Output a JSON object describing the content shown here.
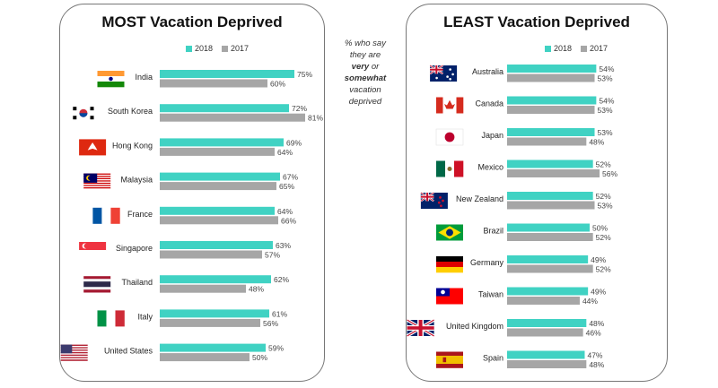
{
  "colors": {
    "series_2018": "#40d2c3",
    "series_2017": "#a6a6a6",
    "panel_border": "#777777"
  },
  "note": {
    "line1": "% who say",
    "line2": "they are",
    "line3_bold": "very",
    "line3_rest": " or",
    "line4_bold": "somewhat",
    "line5": "vacation",
    "line6": "deprived"
  },
  "chart_data": [
    {
      "type": "bar",
      "orientation": "horizontal",
      "title": "MOST Vacation Deprived",
      "legend": [
        "2018",
        "2017"
      ],
      "legend_position": "top",
      "grid": false,
      "xlim": [
        0,
        100
      ],
      "categories": [
        "India",
        "South Korea",
        "Hong Kong",
        "Malaysia",
        "France",
        "Singapore",
        "Thailand",
        "Italy",
        "United States"
      ],
      "flags": [
        "flag-india-icon",
        "flag-south-korea-icon",
        "flag-hong-kong-icon",
        "flag-malaysia-icon",
        "flag-france-icon",
        "flag-singapore-icon",
        "flag-thailand-icon",
        "flag-italy-icon",
        "flag-united-states-icon"
      ],
      "series": [
        {
          "name": "2018",
          "values": [
            75,
            72,
            69,
            67,
            64,
            63,
            62,
            61,
            59
          ],
          "labels": [
            "75%",
            "72%",
            "69%",
            "67%",
            "64%",
            "63%",
            "62%",
            "61%",
            "59%"
          ]
        },
        {
          "name": "2017",
          "values": [
            60,
            81,
            64,
            65,
            66,
            57,
            48,
            56,
            50
          ],
          "labels": [
            "60%",
            "81%",
            "64%",
            "65%",
            "66%",
            "57%",
            "48%",
            "56%",
            "50%"
          ]
        }
      ]
    },
    {
      "type": "bar",
      "orientation": "horizontal",
      "title": "LEAST Vacation Deprived",
      "legend": [
        "2018",
        "2017"
      ],
      "legend_position": "top",
      "grid": false,
      "xlim": [
        0,
        100
      ],
      "categories": [
        "Australia",
        "Canada",
        "Japan",
        "Mexico",
        "New Zealand",
        "Brazil",
        "Germany",
        "Taiwan",
        "United Kingdom",
        "Spain"
      ],
      "flags": [
        "flag-australia-icon",
        "flag-canada-icon",
        "flag-japan-icon",
        "flag-mexico-icon",
        "flag-new-zealand-icon",
        "flag-brazil-icon",
        "flag-germany-icon",
        "flag-taiwan-icon",
        "flag-united-kingdom-icon",
        "flag-spain-icon"
      ],
      "series": [
        {
          "name": "2018",
          "values": [
            54,
            54,
            53,
            52,
            52,
            50,
            49,
            49,
            48,
            47
          ],
          "labels": [
            "54%",
            "54%",
            "53%",
            "52%",
            "52%",
            "50%",
            "49%",
            "49%",
            "48%",
            "47%"
          ]
        },
        {
          "name": "2017",
          "values": [
            53,
            53,
            48,
            56,
            53,
            52,
            52,
            44,
            46,
            48
          ],
          "labels": [
            "53%",
            "53%",
            "48%",
            "56%",
            "53%",
            "52%",
            "52%",
            "44%",
            "46%",
            "48%"
          ]
        }
      ]
    }
  ]
}
